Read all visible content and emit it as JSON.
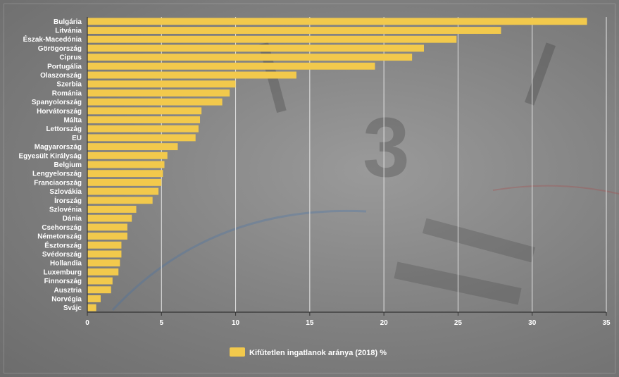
{
  "colors": {
    "bar": "#f2c94c",
    "grid": "#e6e6e6",
    "axis": "#333333",
    "text": "#ffffff"
  },
  "chart_data": {
    "type": "bar",
    "orientation": "horizontal",
    "categories": [
      "Bulgária",
      "Litvánia",
      "Észak-Macedónia",
      "Görögország",
      "Ciprus",
      "Portugália",
      "Olaszország",
      "Szerbia",
      "Románia",
      "Spanyolország",
      "Horvátország",
      "Málta",
      "Lettország",
      "EU",
      "Magyarország",
      "Egyesült Királyság",
      "Belgium",
      "Lengyelország",
      "Franciaország",
      "Szlovákia",
      "Írország",
      "Szlovénia",
      "Dánia",
      "Csehország",
      "Németország",
      "Észtország",
      "Svédország",
      "Hollandia",
      "Luxemburg",
      "Finnország",
      "Ausztria",
      "Norvégia",
      "Svájc"
    ],
    "series": [
      {
        "name": "Kifűtetlen ingatlanok aránya (2018) %",
        "values": [
          33.7,
          27.9,
          24.9,
          22.7,
          21.9,
          19.4,
          14.1,
          10.0,
          9.6,
          9.1,
          7.7,
          7.6,
          7.5,
          7.3,
          6.1,
          5.4,
          5.2,
          5.1,
          5.0,
          4.8,
          4.4,
          3.3,
          3.0,
          2.7,
          2.7,
          2.3,
          2.3,
          2.2,
          2.1,
          1.7,
          1.6,
          0.9,
          0.6
        ]
      }
    ],
    "xlim": [
      0,
      35
    ],
    "xticks": [
      "0",
      "5",
      "10",
      "15",
      "20",
      "25",
      "30",
      "35"
    ],
    "xlabel": "",
    "ylabel": "",
    "title": "",
    "grid": "vertical",
    "legend_position": "bottom"
  }
}
